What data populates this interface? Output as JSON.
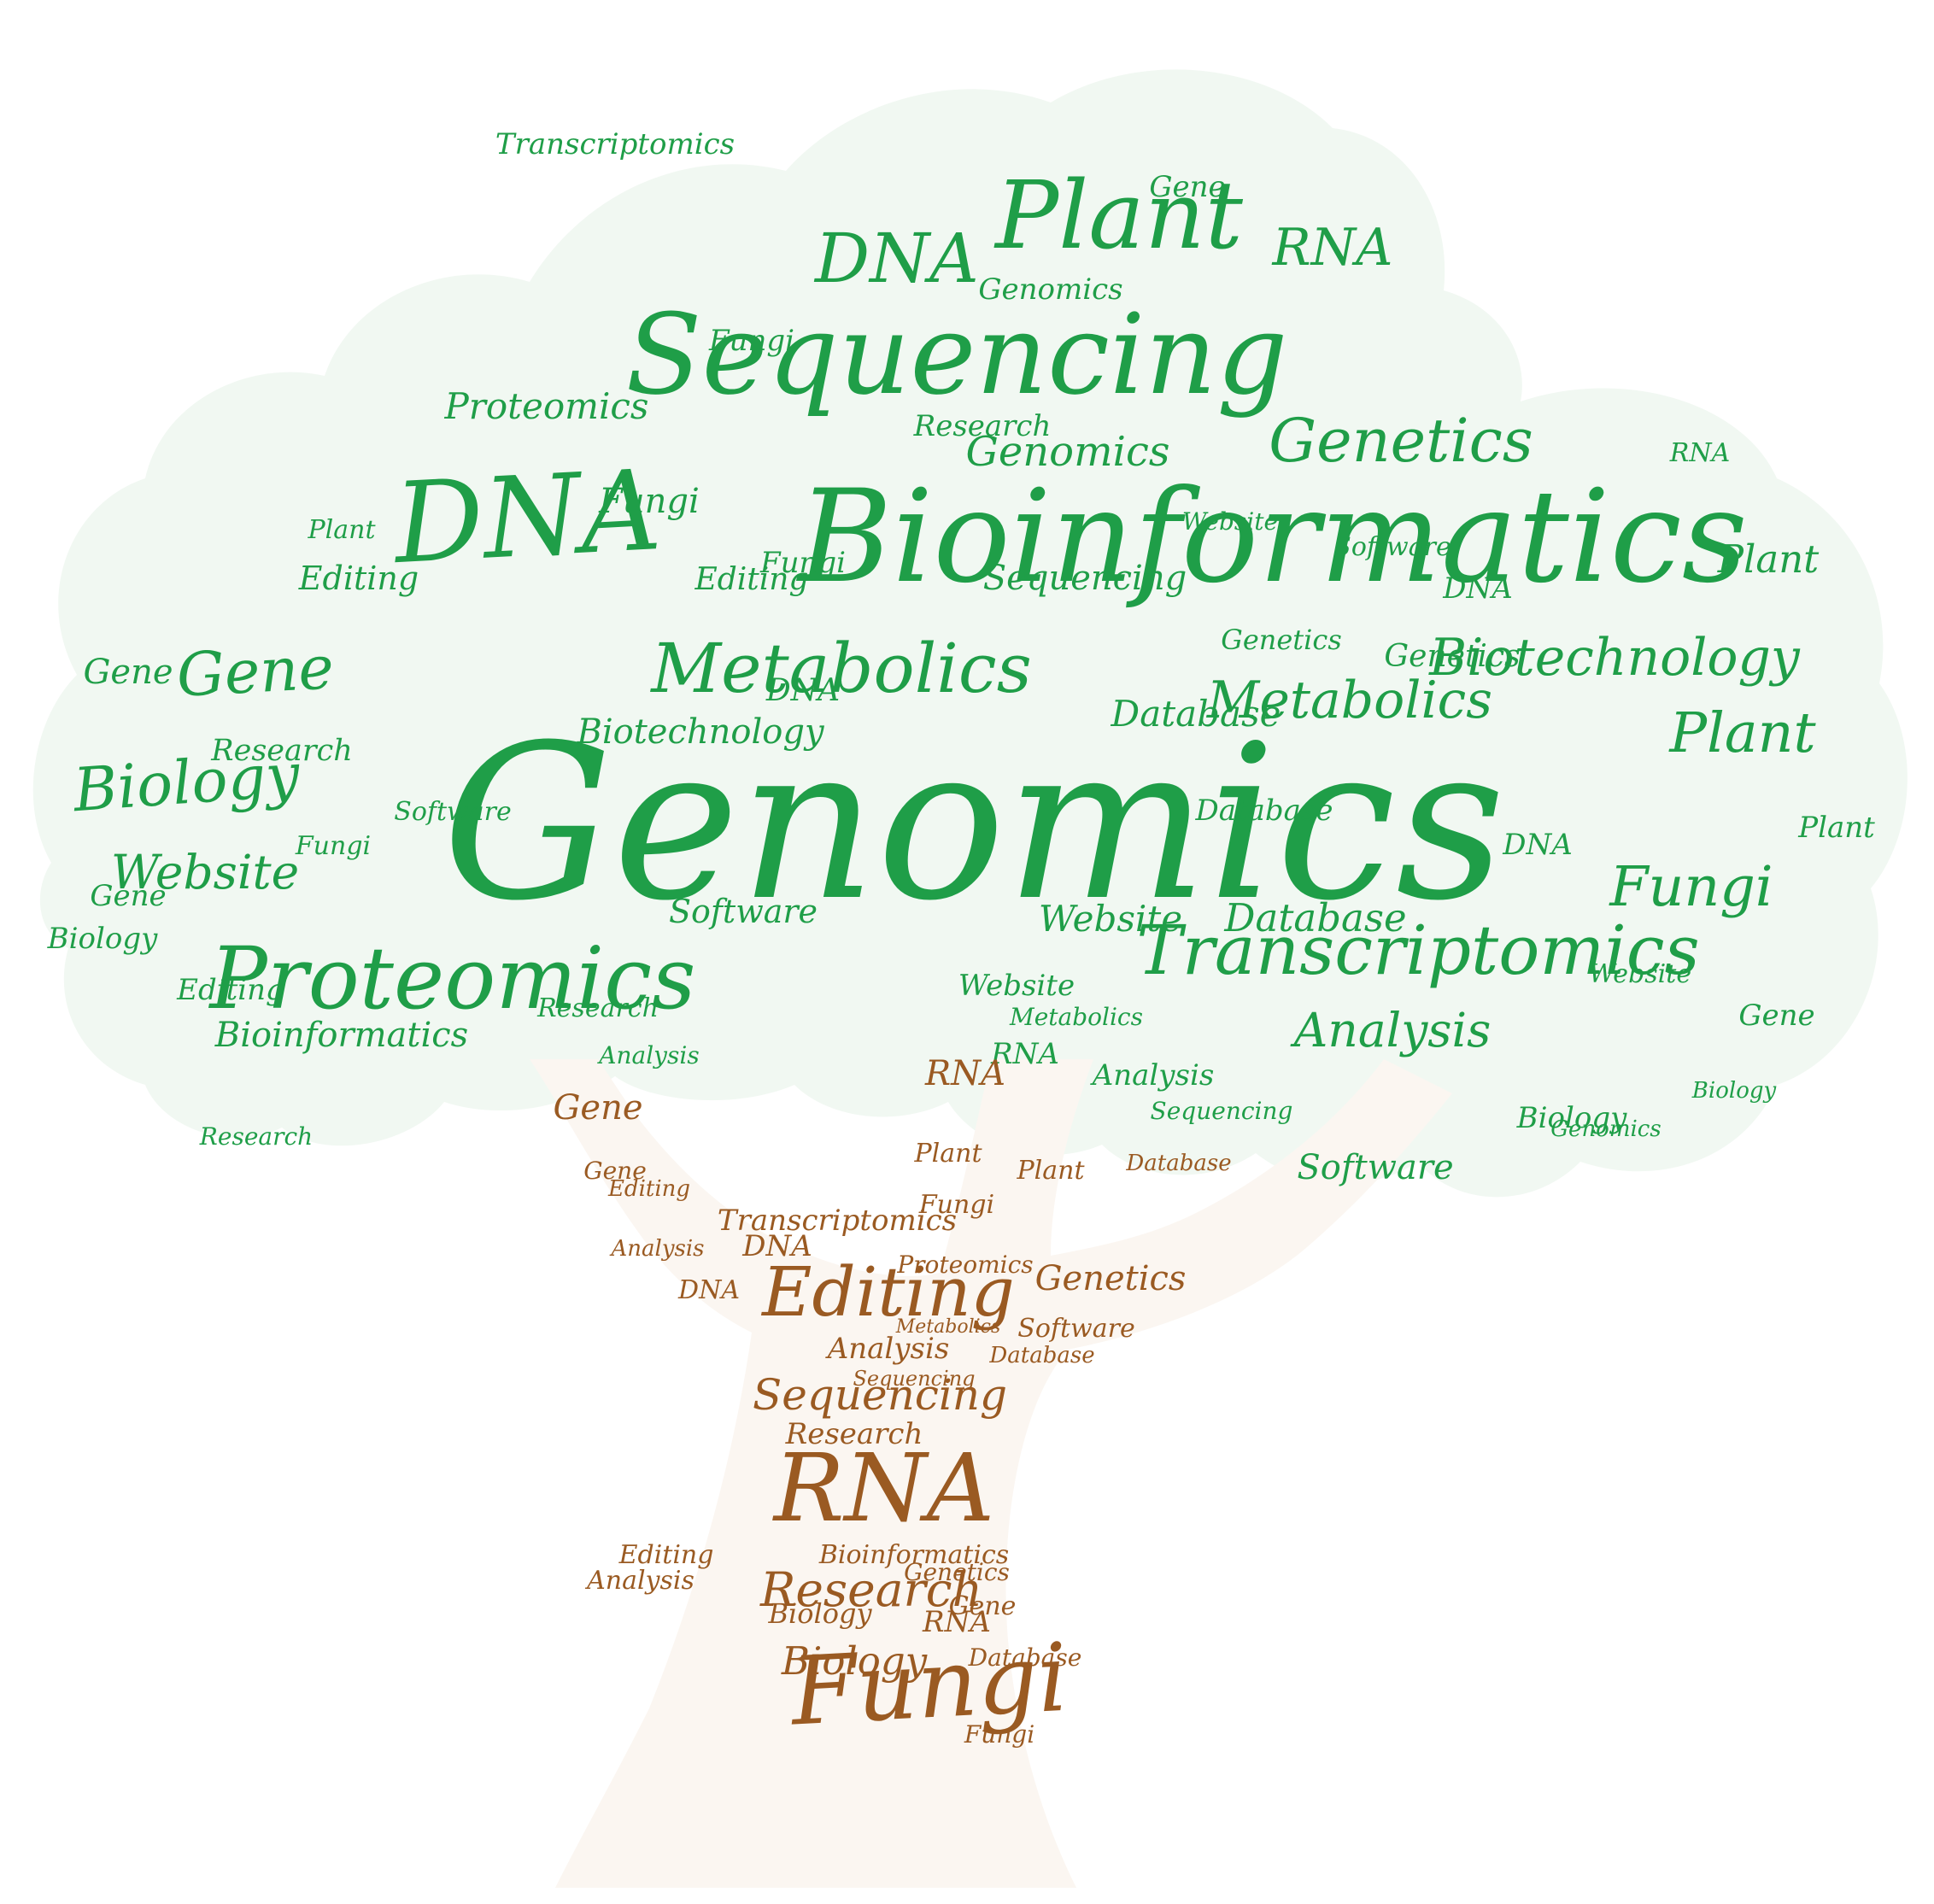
{
  "colors": {
    "canopy_text": "#1f9e48",
    "trunk_text": "#9a5a22",
    "canopy_fill": "#f1f8f2",
    "trunk_fill": "#fbf6f1",
    "background": "#ffffff"
  },
  "canopy_words": [
    "Genomics",
    "Bioinformatics",
    "Sequencing",
    "DNA",
    "Plant",
    "Proteomics",
    "Transcriptomics",
    "Metabolics",
    "Genetics",
    "Biotechnology",
    "Gene",
    "Biology",
    "Website",
    "Database",
    "Editing",
    "Software",
    "Analysis",
    "Fungi",
    "Plant",
    "Research",
    "Metabolics",
    "DNA",
    "RNA",
    "Gene",
    "Genomics",
    "Website",
    "Database",
    "Proteomics",
    "Biotechnology",
    "Bioinformatics",
    "Sequencing",
    "Fungi",
    "Plant",
    "Software",
    "Genetics",
    "DNA",
    "Genomics",
    "Transcriptomics",
    "Research",
    "Gene",
    "Biology",
    "Analysis",
    "Editing",
    "RNA",
    "Fungi",
    "Website",
    "Plant",
    "Gene",
    "Software",
    "DNA",
    "Research",
    "Genetics",
    "Biology",
    "Fungi",
    "Website",
    "Gene",
    "DNA",
    "Plant",
    "Metabolics",
    "RNA",
    "Genomics",
    "Sequencing",
    "Research",
    "Website",
    "Database",
    "Analysis",
    "Biology",
    "Editing",
    "Software",
    "Fungi"
  ],
  "trunk_words": [
    "RNA",
    "Fungi",
    "Editing",
    "Research",
    "Sequencing",
    "Biology",
    "Genetics",
    "Transcriptomics",
    "Analysis",
    "Gene",
    "Plant",
    "Database",
    "Proteomics",
    "DNA",
    "Bioinformatics",
    "Genetics",
    "Gene",
    "Software",
    "Editing",
    "Analysis",
    "Database",
    "Sequencing",
    "Metabolics",
    "RNA",
    "Plant",
    "Fungi",
    "Gene",
    "Research",
    "Editing",
    "Analysis",
    "Database",
    "Biology",
    "DNA",
    "RNA",
    "Fungi"
  ]
}
